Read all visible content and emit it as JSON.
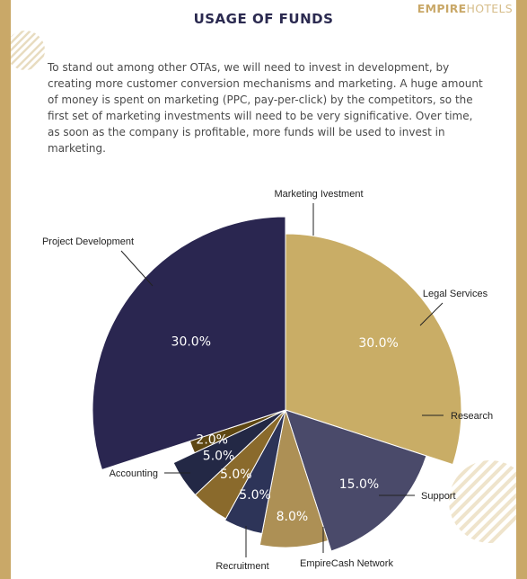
{
  "header": {
    "title": "USAGE OF FUNDS",
    "brand_bold": "EMPIRE",
    "brand_light": "HOTELS"
  },
  "intro": "To stand out among other OTAs, we will need to invest in development, by creating more customer conversion mechanisms and marketing. A huge amount of money is spent on marketing (PPC, pay-per-click) by the competitors, so the first set of marketing investments will need to be very significative. Over time, as soon as the company is profitable, more funds will be used to invest in marketing.",
  "colors": {
    "navy": "#2b2a50",
    "gold": "#c9a868",
    "frame": "#c9a868"
  },
  "chart_data": {
    "type": "pie",
    "title": "",
    "variant": "exploded-radius",
    "start_angle_deg": -90,
    "slices": [
      {
        "label": "Marketing Ivestment",
        "value": 30.0,
        "value_label": "30.0%",
        "color": "#c9ad66"
      },
      {
        "label": "Legal Services",
        "value": 15.0,
        "value_label": "15.0%",
        "color": "#4a4a6a"
      },
      {
        "label": "Research",
        "value": 8.0,
        "value_label": "8.0%",
        "color": "#ad9055"
      },
      {
        "label": "Support",
        "value": 5.0,
        "value_label": "5.0%",
        "color": "#2d3458"
      },
      {
        "label": "EmpireCash Network",
        "value": 5.0,
        "value_label": "5.0%",
        "color": "#8a6a2c"
      },
      {
        "label": "Recruitment",
        "value": 5.0,
        "value_label": "5.0%",
        "color": "#232845"
      },
      {
        "label": "Accounting",
        "value": 2.0,
        "value_label": "2.0%",
        "color": "#5e4712"
      },
      {
        "label": "Project Development",
        "value": 30.0,
        "value_label": "30.0%",
        "color": "#2a2650"
      }
    ]
  }
}
